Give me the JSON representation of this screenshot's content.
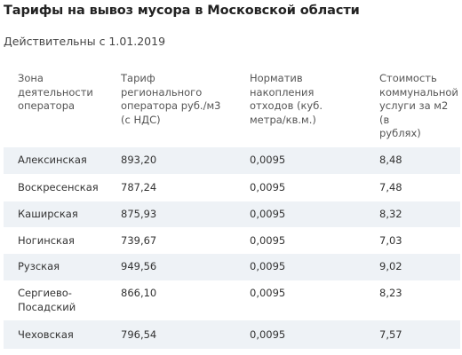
{
  "title": "Тарифы на вывоз мусора в Московской области",
  "subtitle": "Действительны с 1.01.2019",
  "table": {
    "headers": [
      [
        "Зона",
        "деятельности",
        "оператора"
      ],
      [
        "Тариф",
        "регионального",
        "оператора руб./м3",
        "(с НДС)"
      ],
      [
        "Норматив",
        "накопления",
        "отходов (куб.",
        "метра/кв.м.)"
      ],
      [
        "Стоимость",
        "коммунальной",
        "услуги за м2 (в",
        "рублях)"
      ]
    ],
    "rows": [
      {
        "zone": [
          "Алексинская"
        ],
        "tariff": "893,20",
        "norm": "0,0095",
        "cost": "8,48"
      },
      {
        "zone": [
          "Воскресенская"
        ],
        "tariff": "787,24",
        "norm": "0,0095",
        "cost": "7,48"
      },
      {
        "zone": [
          "Каширская"
        ],
        "tariff": "875,93",
        "norm": "0,0095",
        "cost": "8,32"
      },
      {
        "zone": [
          "Ногинская"
        ],
        "tariff": "739,67",
        "norm": "0,0095",
        "cost": "7,03"
      },
      {
        "zone": [
          "Рузская"
        ],
        "tariff": "949,56",
        "norm": "0,0095",
        "cost": "9,02"
      },
      {
        "zone": [
          "Сергиево-",
          "Посадский"
        ],
        "tariff": "866,10",
        "norm": "0,0095",
        "cost": "8,23"
      },
      {
        "zone": [
          "Чеховская"
        ],
        "tariff": "796,54",
        "norm": "0,0095",
        "cost": "7,57"
      }
    ]
  }
}
